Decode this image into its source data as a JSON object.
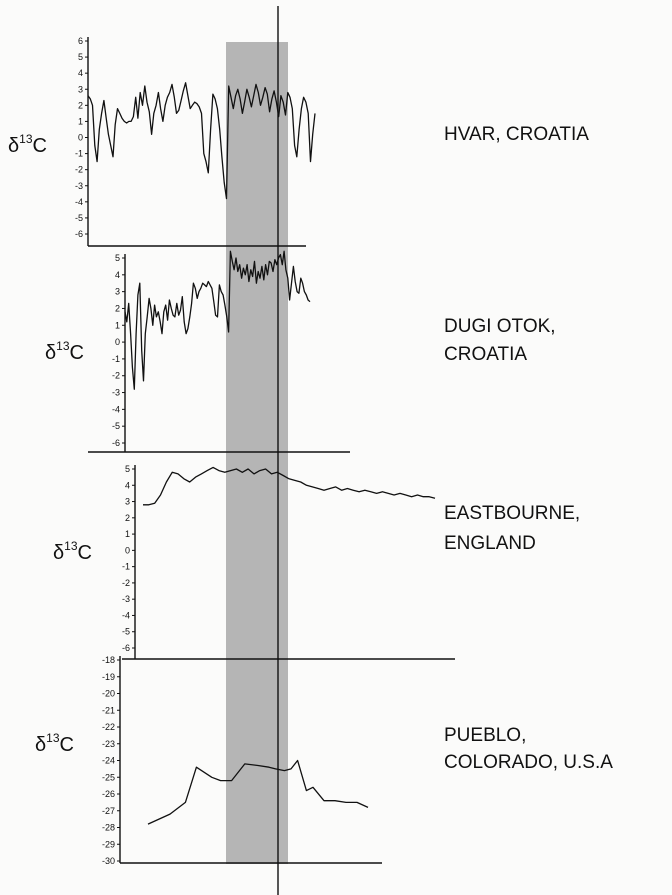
{
  "chart_data": [
    {
      "type": "line",
      "site_label": [
        "HVAR, CROATIA"
      ],
      "ylabel": {
        "main": "δ",
        "sup": "13",
        "tail": "C"
      },
      "ylim": [
        -6,
        6
      ],
      "yticks": [
        6,
        5,
        4,
        3,
        2,
        1,
        0,
        -1,
        -2,
        -3,
        -4,
        -5,
        -6
      ],
      "x": [
        0,
        0.01,
        0.02,
        0.03,
        0.04,
        0.05,
        0.06,
        0.07,
        0.08,
        0.09,
        0.1,
        0.11,
        0.12,
        0.13,
        0.14,
        0.15,
        0.16,
        0.17,
        0.18,
        0.19,
        0.2,
        0.21,
        0.22,
        0.23,
        0.24,
        0.25,
        0.26,
        0.27,
        0.28,
        0.29,
        0.3,
        0.31,
        0.32,
        0.33,
        0.34,
        0.35,
        0.36,
        0.37,
        0.38,
        0.39,
        0.4,
        0.41,
        0.42,
        0.43,
        0.44,
        0.45,
        0.46,
        0.47,
        0.48,
        0.49,
        0.5,
        0.51,
        0.52,
        0.53,
        0.54,
        0.55,
        0.56,
        0.57,
        0.58,
        0.59,
        0.6,
        0.61,
        0.62,
        0.63,
        0.64,
        0.65,
        0.66,
        0.67,
        0.68,
        0.69,
        0.7,
        0.71,
        0.72,
        0.73,
        0.74,
        0.75,
        0.76,
        0.77,
        0.78,
        0.79,
        0.8,
        0.81,
        0.82,
        0.83,
        0.84,
        0.85,
        0.86,
        0.87,
        0.88,
        0.89,
        0.9,
        0.91,
        0.92,
        0.93,
        0.94,
        0.95,
        0.96,
        0.97,
        0.98,
        0.99,
        1.0
      ],
      "values": [
        2.6,
        2.4,
        2.0,
        -0.5,
        -1.5,
        0.5,
        1.5,
        2.3,
        1.2,
        0.2,
        -0.5,
        -1.2,
        0.8,
        1.8,
        1.5,
        1.2,
        1.0,
        0.9,
        1.0,
        1.0,
        1.3,
        2.5,
        1.2,
        2.8,
        2.0,
        3.2,
        2.2,
        1.6,
        0.2,
        1.5,
        2.0,
        2.8,
        1.8,
        1.0,
        2.0,
        2.5,
        2.8,
        3.3,
        2.5,
        1.5,
        1.7,
        2.3,
        2.9,
        3.4,
        2.6,
        1.8,
        2.0,
        2.2,
        2.1,
        1.9,
        1.5,
        -1.0,
        -1.5,
        -2.2,
        0.5,
        2.7,
        2.4,
        1.8,
        0.5,
        -1.2,
        -2.8,
        -3.8,
        3.2,
        2.5,
        1.8,
        2.6,
        3.0,
        2.4,
        1.5,
        2.2,
        3.0,
        2.5,
        1.9,
        2.6,
        3.3,
        2.8,
        2.0,
        2.5,
        3.1,
        2.7,
        1.6,
        2.4,
        2.9,
        2.2,
        1.3,
        2.6,
        2.2,
        1.4,
        2.8,
        2.5,
        1.8,
        -0.5,
        -1.2,
        0.5,
        1.8,
        2.5,
        2.2,
        1.5,
        -1.5,
        0.2,
        1.5
      ]
    },
    {
      "type": "line",
      "site_label": [
        "DUGI OTOK,",
        "CROATIA"
      ],
      "ylabel": {
        "main": "δ",
        "sup": "13",
        "tail": "C"
      },
      "ylim": [
        -6,
        6
      ],
      "yticks": [
        5,
        4,
        3,
        2,
        1,
        0,
        -1,
        -2,
        -3,
        -4,
        -5,
        -6
      ],
      "x": [
        0,
        0.01,
        0.02,
        0.03,
        0.04,
        0.05,
        0.06,
        0.07,
        0.08,
        0.09,
        0.1,
        0.11,
        0.12,
        0.13,
        0.14,
        0.15,
        0.16,
        0.17,
        0.18,
        0.19,
        0.2,
        0.21,
        0.22,
        0.23,
        0.24,
        0.25,
        0.26,
        0.27,
        0.28,
        0.29,
        0.3,
        0.31,
        0.32,
        0.33,
        0.34,
        0.35,
        0.36,
        0.37,
        0.38,
        0.39,
        0.4,
        0.41,
        0.42,
        0.43,
        0.44,
        0.45,
        0.46,
        0.47,
        0.48,
        0.49,
        0.5,
        0.51,
        0.52,
        0.53,
        0.54,
        0.55,
        0.56,
        0.57,
        0.58,
        0.59,
        0.6,
        0.61,
        0.62,
        0.63,
        0.64,
        0.65,
        0.66,
        0.67,
        0.68,
        0.69,
        0.7,
        0.71,
        0.72,
        0.73,
        0.74,
        0.75,
        0.76,
        0.77,
        0.78,
        0.79,
        0.8,
        0.81,
        0.82,
        0.83,
        0.84,
        0.85,
        0.86,
        0.87,
        0.88,
        0.89,
        0.9,
        0.91,
        0.92,
        0.93,
        0.94,
        0.95,
        0.96,
        0.97,
        0.98,
        0.99,
        1.0
      ],
      "values": [
        1.8,
        1.2,
        2.3,
        0.5,
        -1.5,
        -2.8,
        0.5,
        2.8,
        3.5,
        -0.5,
        -2.3,
        0.5,
        1.5,
        2.6,
        2.0,
        1.0,
        2.2,
        1.5,
        1.8,
        1.2,
        0.5,
        1.8,
        2.2,
        1.3,
        2.5,
        2.0,
        1.6,
        1.5,
        2.3,
        1.6,
        1.9,
        2.7,
        1.2,
        0.5,
        0.8,
        1.5,
        2.3,
        3.5,
        3.2,
        2.6,
        3.0,
        3.2,
        3.5,
        3.4,
        3.3,
        3.6,
        3.4,
        3.2,
        2.4,
        1.6,
        1.5,
        3.4,
        3.0,
        2.8,
        2.2,
        1.5,
        0.6,
        5.4,
        4.8,
        4.3,
        5.0,
        4.2,
        4.6,
        3.8,
        4.4,
        4.0,
        4.6,
        3.6,
        4.3,
        3.9,
        4.8,
        3.5,
        4.2,
        3.8,
        4.5,
        3.7,
        4.6,
        4.0,
        4.8,
        4.7,
        4.2,
        4.9,
        4.6,
        5.0,
        5.2,
        4.6,
        5.4,
        4.3,
        3.8,
        2.5,
        3.5,
        4.5,
        3.6,
        3.0,
        2.9,
        3.8,
        3.5,
        3.0,
        2.8,
        2.5,
        2.4
      ]
    },
    {
      "type": "line",
      "site_label": [
        "EASTBOURNE,",
        "ENGLAND"
      ],
      "ylabel": {
        "main": "δ",
        "sup": "13",
        "tail": "C"
      },
      "ylim": [
        -6,
        6
      ],
      "yticks": [
        5,
        4,
        3,
        2,
        1,
        0,
        -1,
        -2,
        -3,
        -4,
        -5,
        -6
      ],
      "x": [
        0,
        0.02,
        0.04,
        0.06,
        0.08,
        0.1,
        0.12,
        0.14,
        0.16,
        0.18,
        0.2,
        0.22,
        0.24,
        0.26,
        0.28,
        0.3,
        0.32,
        0.34,
        0.36,
        0.38,
        0.4,
        0.42,
        0.44,
        0.46,
        0.48,
        0.5,
        0.52,
        0.54,
        0.56,
        0.58,
        0.6,
        0.62,
        0.64,
        0.66,
        0.68,
        0.7,
        0.72,
        0.74,
        0.76,
        0.78,
        0.8,
        0.82,
        0.84,
        0.86,
        0.88,
        0.9,
        0.92,
        0.94,
        0.96,
        0.98,
        1.0
      ],
      "values": [
        2.8,
        2.8,
        2.9,
        3.4,
        4.2,
        4.8,
        4.7,
        4.4,
        4.2,
        4.5,
        4.7,
        4.9,
        5.1,
        4.9,
        4.8,
        4.9,
        5.0,
        4.8,
        5.0,
        4.7,
        4.9,
        5.0,
        4.7,
        4.8,
        4.6,
        4.4,
        4.3,
        4.2,
        4.0,
        3.9,
        3.8,
        3.7,
        3.8,
        3.9,
        3.7,
        3.8,
        3.7,
        3.6,
        3.7,
        3.6,
        3.5,
        3.6,
        3.5,
        3.4,
        3.5,
        3.4,
        3.3,
        3.4,
        3.3,
        3.3,
        3.2
      ]
    },
    {
      "type": "line",
      "site_label": [
        "PUEBLO,",
        "COLORADO, U.S.A"
      ],
      "ylabel": {
        "main": "δ",
        "sup": "13",
        "tail": "C"
      },
      "ylim": [
        -30,
        -18
      ],
      "yticks": [
        -18,
        -19,
        -20,
        -21,
        -22,
        -23,
        -24,
        -25,
        -26,
        -27,
        -28,
        -29,
        -30
      ],
      "x": [
        0,
        0.1,
        0.17,
        0.22,
        0.29,
        0.33,
        0.36,
        0.38,
        0.44,
        0.5,
        0.55,
        0.58,
        0.62,
        0.65,
        0.68,
        0.72,
        0.75,
        0.8,
        0.85,
        0.9,
        0.95,
        1.0
      ],
      "values": [
        -27.8,
        -27.2,
        -26.5,
        -24.4,
        -25.0,
        -25.2,
        -25.2,
        -25.2,
        -24.2,
        -24.3,
        -24.4,
        -24.5,
        -24.6,
        -24.5,
        -24.0,
        -25.8,
        -25.6,
        -26.4,
        -26.4,
        -26.5,
        -26.5,
        -26.8
      ]
    }
  ]
}
